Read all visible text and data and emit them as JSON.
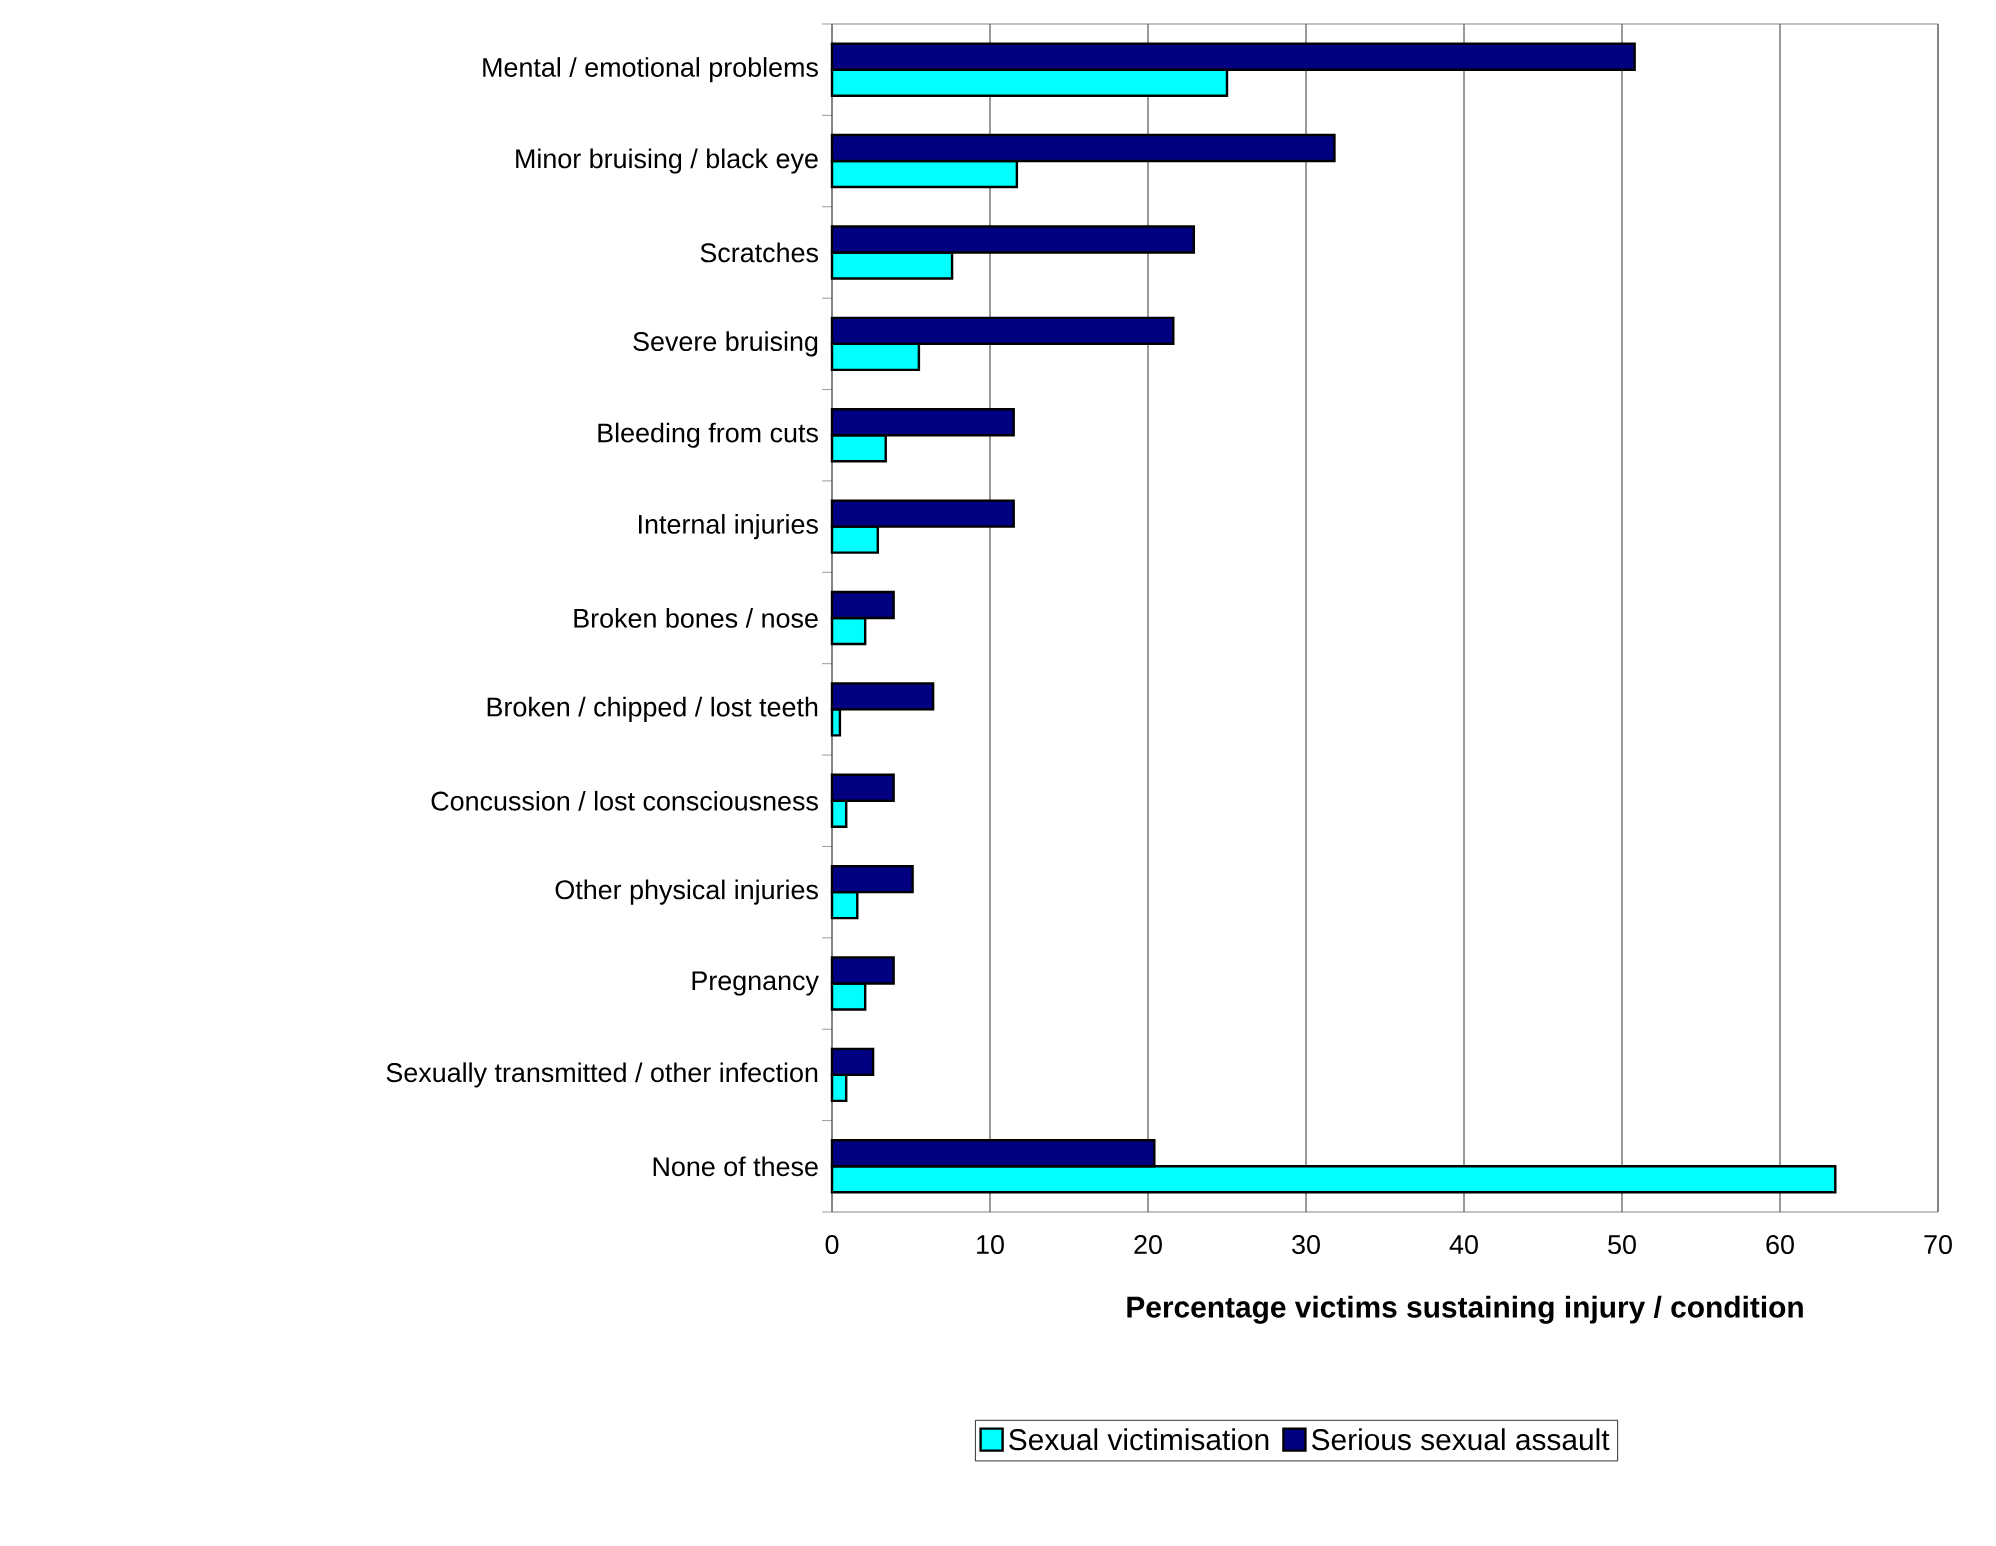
{
  "chart_data": {
    "type": "bar",
    "orientation": "horizontal",
    "xlabel": "Percentage victims sustaining injury / condition",
    "categories": [
      "Mental / emotional problems",
      "Minor bruising / black eye",
      "Scratches",
      "Severe bruising",
      "Bleeding from cuts",
      "Internal injuries",
      "Broken bones / nose",
      "Broken / chipped / lost teeth",
      "Concussion / lost consciousness",
      "Other physical injuries",
      "Pregnancy",
      "Sexually transmitted / other infection",
      "None of these"
    ],
    "series": [
      {
        "name": "Sexual victimisation",
        "color": "#00ffff",
        "values": [
          25.0,
          11.7,
          7.6,
          5.5,
          3.4,
          2.9,
          2.1,
          0.5,
          0.9,
          1.6,
          2.1,
          0.9,
          63.5
        ]
      },
      {
        "name": "Serious sexual assault",
        "color": "#000080",
        "values": [
          50.8,
          31.8,
          22.9,
          21.6,
          11.5,
          11.5,
          3.9,
          6.4,
          3.9,
          5.1,
          3.9,
          2.6,
          20.4
        ]
      }
    ],
    "xlim": [
      0,
      70
    ],
    "xticks": [
      0,
      10,
      20,
      30,
      40,
      50,
      60,
      70
    ],
    "grid": "x",
    "legend": "bottom"
  }
}
